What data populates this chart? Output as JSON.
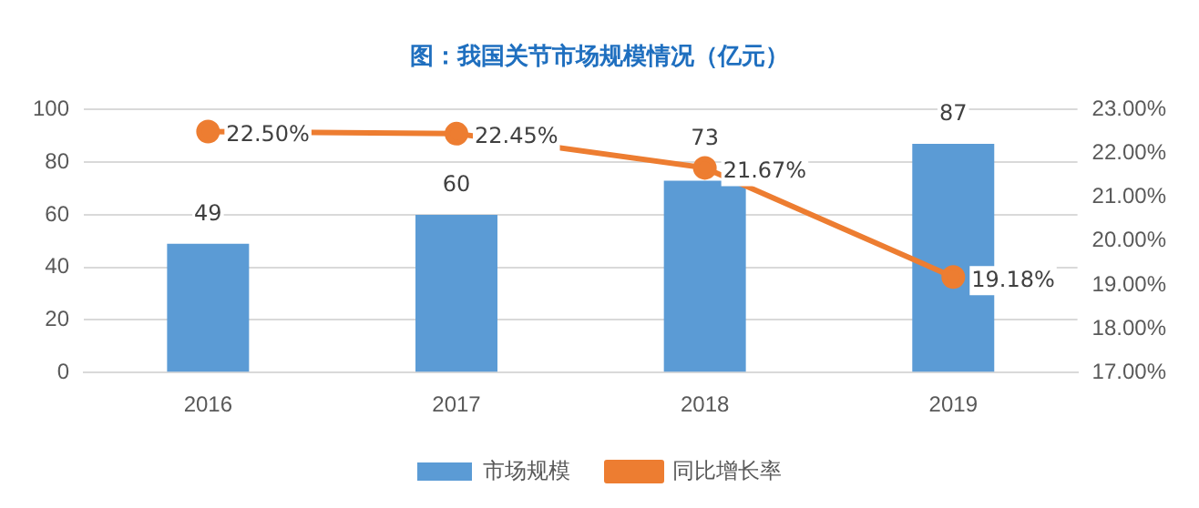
{
  "chart_data": {
    "type": "bar",
    "title": "图：我国关节市场规模情况（亿元）",
    "categories": [
      "2016",
      "2017",
      "2018",
      "2019"
    ],
    "series": [
      {
        "name": "市场规模",
        "color": "#5b9bd5",
        "values": [
          49,
          60,
          73,
          87
        ],
        "value_labels": [
          "49",
          "60",
          "73",
          "87"
        ]
      },
      {
        "name": "同比增长率",
        "type": "line",
        "axis": "y2",
        "color": "#ed7d31",
        "values": [
          22.5,
          22.45,
          21.67,
          19.18
        ],
        "value_labels": [
          "22.50%",
          "22.45%",
          "21.67%",
          "19.18%"
        ]
      }
    ],
    "ylim": [
      0,
      100
    ],
    "yticks": [
      0,
      20,
      40,
      60,
      80,
      100
    ],
    "y2lim": [
      17,
      23
    ],
    "y2ticks": [
      {
        "value": 17,
        "label": "17.00%"
      },
      {
        "value": 18,
        "label": "18.00%"
      },
      {
        "value": 19,
        "label": "19.00%"
      },
      {
        "value": 20,
        "label": "20.00%"
      },
      {
        "value": 21,
        "label": "21.00%"
      },
      {
        "value": 22,
        "label": "22.00%"
      },
      {
        "value": 23,
        "label": "23.00%"
      }
    ],
    "grid": "y",
    "legend": "bottom",
    "marker": "circle",
    "line_style": "solid"
  }
}
